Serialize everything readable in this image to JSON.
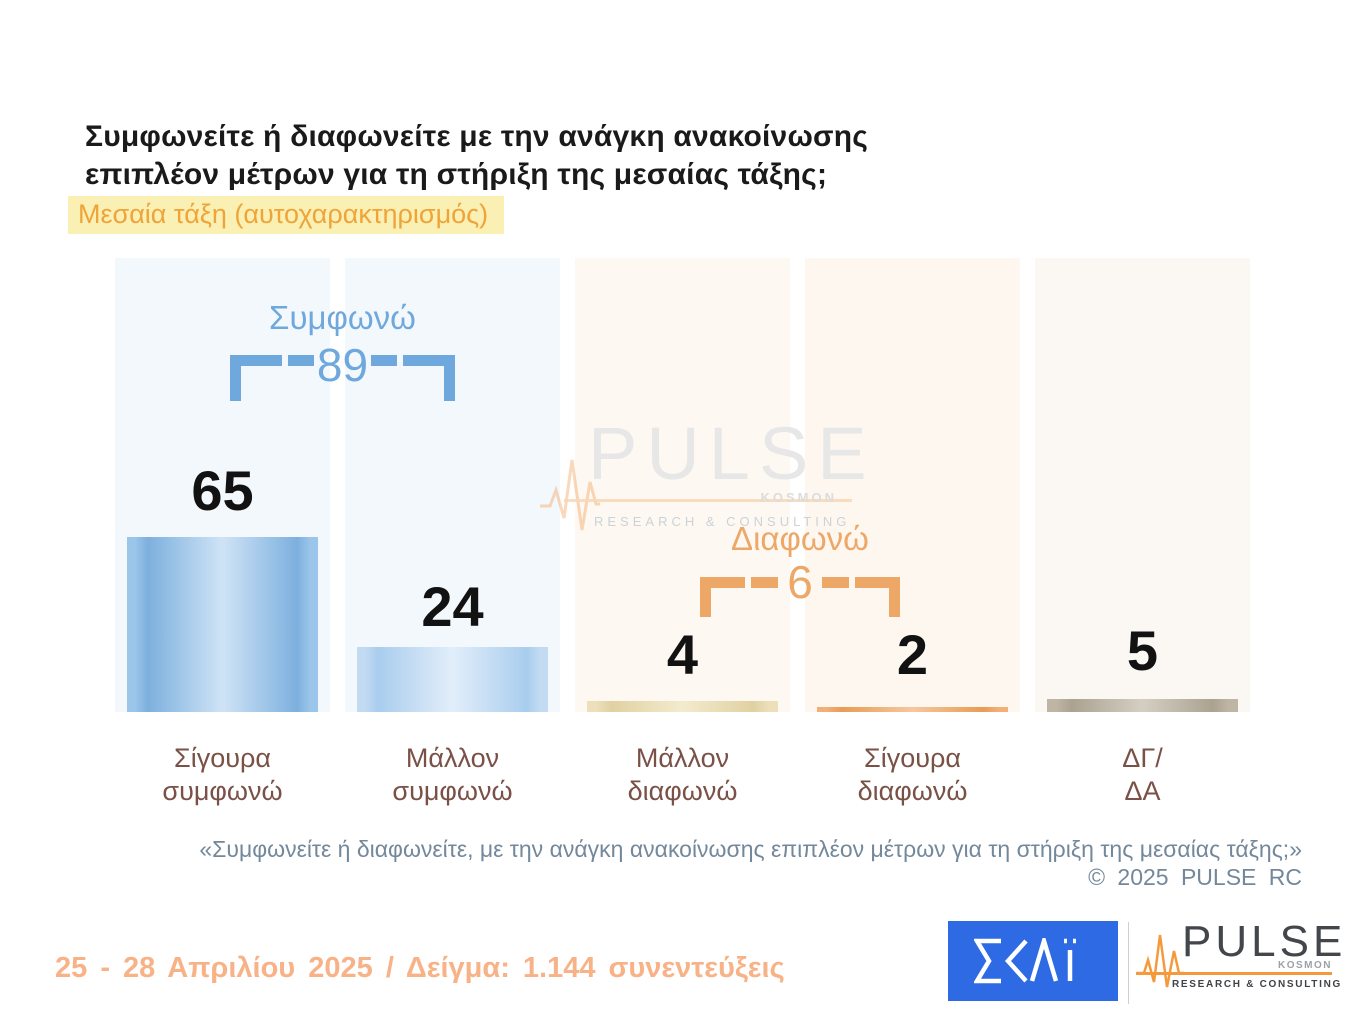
{
  "title": {
    "line1": "Συμφωνείτε ή διαφωνείτε με την ανάγκη ανακοίνωσης",
    "line2": "επιπλέον μέτρων για τη στήριξη της μεσαίας τάξης;"
  },
  "subtitle": "Μεσαία τάξη (αυτοχαρακτηρισμός)",
  "chart_data": {
    "type": "bar",
    "title": "Συμφωνείτε ή διαφωνείτε με την ανάγκη ανακοίνωσης επιπλέον μέτρων για τη στήριξη της μεσαίας τάξης; — Μεσαία τάξη (αυτοχαρακτηρισμός)",
    "categories": [
      "Σίγουρα συμφωνώ",
      "Μάλλον συμφωνώ",
      "Μάλλον διαφωνώ",
      "Σίγουρα διαφωνώ",
      "ΔΓ/ΔΑ"
    ],
    "categories_lines": [
      [
        "Σίγουρα",
        "συμφωνώ"
      ],
      [
        "Μάλλον",
        "συμφωνώ"
      ],
      [
        "Μάλλον",
        "διαφωνώ"
      ],
      [
        "Σίγουρα",
        "διαφωνώ"
      ],
      [
        "ΔΓ/",
        "ΔΑ"
      ]
    ],
    "values": [
      65,
      24,
      4,
      2,
      5
    ],
    "ylim": [
      0,
      100
    ],
    "grid": false,
    "legend": false,
    "bar_colors": [
      "#7db0de",
      "#a9cdee",
      "#e0d1a2",
      "#e89c55",
      "#aba28f"
    ],
    "column_bg_colors": [
      "#f3f8fc",
      "#f3f8fc",
      "#fdf9f2",
      "#fdf7ef",
      "#fbf7f2"
    ],
    "groups": [
      {
        "label": "Συμφωνώ",
        "value": 89,
        "bars": [
          0,
          1
        ],
        "color": "#6fa8dc"
      },
      {
        "label": "Διαφωνώ",
        "value": 6,
        "bars": [
          2,
          3
        ],
        "color": "#eda766"
      }
    ]
  },
  "watermark": {
    "brand": "PULSE",
    "sub_brand": "KOSMON",
    "tagline": "RESEARCH & CONSULTING"
  },
  "footer": {
    "quote": "«Συμφωνείτε ή διαφωνείτε, με την ανάγκη ανακοίνωσης επιπλέον μέτρων για τη στήριξη της μεσαίας τάξης;»",
    "copyright": "© 2025 PULSE RC",
    "fieldwork": "25 - 28 Απριλίου 2025 / Δείγμα: 1.144 συνεντεύξεις"
  },
  "logos": {
    "skai": {
      "alt": "ΣΚΑΪ",
      "bg": "#2d6ae4"
    },
    "pulse": {
      "brand": "PULSE",
      "sub_brand": "KOSMON",
      "tagline": "RESEARCH & CONSULTING"
    }
  },
  "colors": {
    "title": "#1a1a1a",
    "subtitle_text": "#efa439",
    "subtitle_highlight": "#faf0b4",
    "agree_accent": "#6fa8dc",
    "disagree_accent": "#eda766",
    "category_label": "#7a5146",
    "footer_text": "#73889b",
    "fieldwork_text": "#f8b287",
    "skai_blue": "#2d6ae4",
    "pulse_orange": "#f59a3c"
  }
}
